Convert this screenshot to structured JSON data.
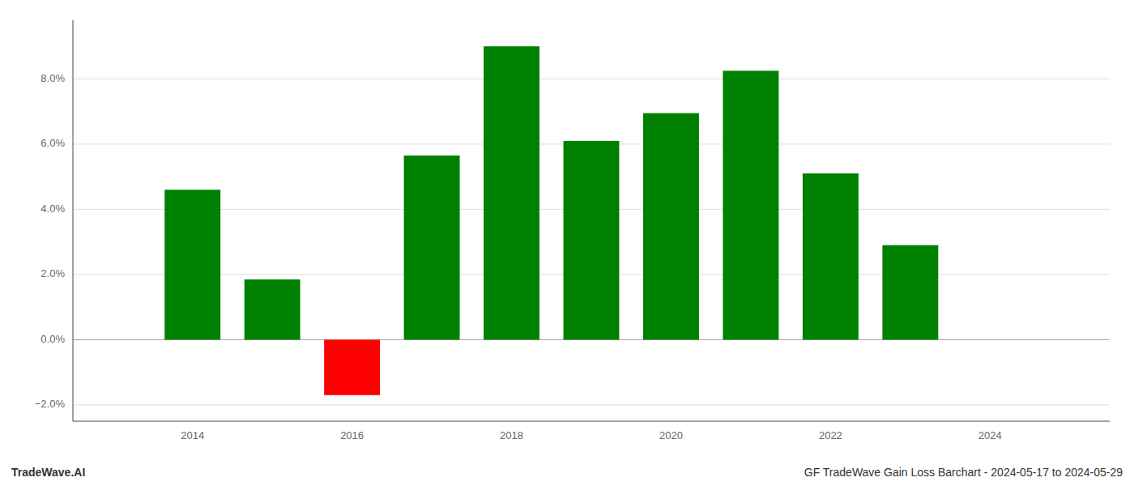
{
  "chart_data": {
    "type": "bar",
    "x": [
      2014,
      2015,
      2016,
      2017,
      2018,
      2019,
      2020,
      2021,
      2022,
      2023
    ],
    "values": [
      0.046,
      0.0185,
      -0.017,
      0.0565,
      0.09,
      0.061,
      0.0695,
      0.0825,
      0.051,
      0.029
    ],
    "colors": [
      "#008000",
      "#008000",
      "#ff0000",
      "#008000",
      "#008000",
      "#008000",
      "#008000",
      "#008000",
      "#008000",
      "#008000"
    ],
    "xlim": [
      2012.5,
      2025.5
    ],
    "xticks": [
      2014,
      2016,
      2018,
      2020,
      2022,
      2024
    ],
    "ylim": [
      -0.025,
      0.098
    ],
    "yticks": [
      {
        "value": -0.02,
        "label": "−2.0%"
      },
      {
        "value": 0.0,
        "label": "0.0%"
      },
      {
        "value": 0.02,
        "label": "2.0%"
      },
      {
        "value": 0.04,
        "label": "4.0%"
      },
      {
        "value": 0.06,
        "label": "6.0%"
      },
      {
        "value": 0.08,
        "label": "8.0%"
      }
    ],
    "grid": true,
    "annotations": [
      "TradeWave.AI",
      "GF TradeWave Gain Loss Barchart - 2024-05-17 to 2024-05-29"
    ]
  }
}
